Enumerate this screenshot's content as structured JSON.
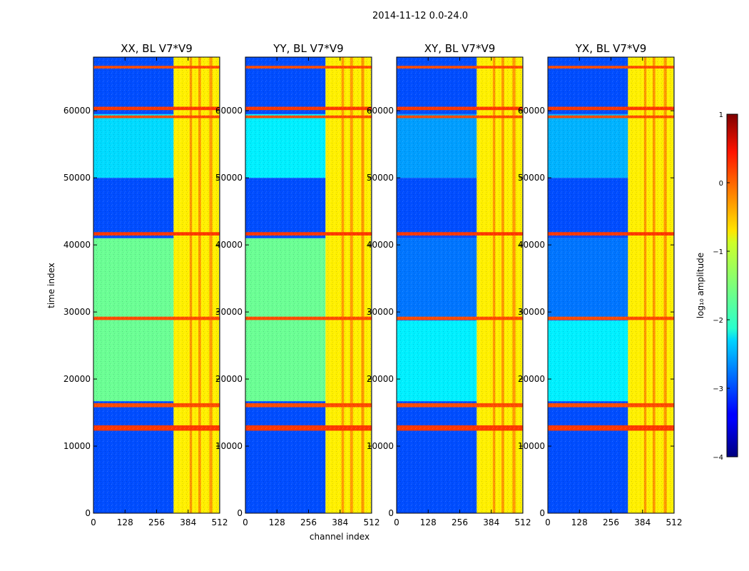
{
  "suptitle": "2014-11-12 0.0-24.0",
  "chart_data": {
    "type": "heatmap",
    "suptitle": "2014-11-12 0.0-24.0",
    "xlabel": "channel index",
    "ylabel": "time index",
    "xlim": [
      0,
      512
    ],
    "ylim": [
      0,
      68000
    ],
    "xticks": [
      "0",
      "128",
      "256",
      "384",
      "512"
    ],
    "yticks": [
      "0",
      "10000",
      "20000",
      "30000",
      "40000",
      "50000",
      "60000"
    ],
    "panels": [
      {
        "title": "XX, BL V7*V9",
        "regions": [
          {
            "y": [
              0,
              16700
            ],
            "low_value": -3.0
          },
          {
            "y": [
              16700,
              41000
            ],
            "low_value": -1.6
          },
          {
            "y": [
              41000,
              50000
            ],
            "low_value": -3.0
          },
          {
            "y": [
              50000,
              59500
            ],
            "low_value": -2.3
          },
          {
            "y": [
              59500,
              68000
            ],
            "low_value": -3.0
          }
        ]
      },
      {
        "title": "YY, BL V7*V9",
        "regions": [
          {
            "y": [
              0,
              16700
            ],
            "low_value": -3.0
          },
          {
            "y": [
              16700,
              41000
            ],
            "low_value": -1.6
          },
          {
            "y": [
              41000,
              50000
            ],
            "low_value": -3.0
          },
          {
            "y": [
              50000,
              59500
            ],
            "low_value": -2.2
          },
          {
            "y": [
              59500,
              68000
            ],
            "low_value": -3.0
          }
        ]
      },
      {
        "title": "XY, BL V7*V9",
        "regions": [
          {
            "y": [
              0,
              16700
            ],
            "low_value": -3.0
          },
          {
            "y": [
              16700,
              28700
            ],
            "low_value": -2.2
          },
          {
            "y": [
              28700,
              41000
            ],
            "low_value": -2.8
          },
          {
            "y": [
              41000,
              50000
            ],
            "low_value": -3.0
          },
          {
            "y": [
              50000,
              59500
            ],
            "low_value": -2.6
          },
          {
            "y": [
              59500,
              68000
            ],
            "low_value": -3.0
          }
        ]
      },
      {
        "title": "YX, BL V7*V9",
        "regions": [
          {
            "y": [
              0,
              16700
            ],
            "low_value": -3.0
          },
          {
            "y": [
              16700,
              28700
            ],
            "low_value": -2.2
          },
          {
            "y": [
              28700,
              41000
            ],
            "low_value": -2.8
          },
          {
            "y": [
              41000,
              50000
            ],
            "low_value": -3.0
          },
          {
            "y": [
              50000,
              59500
            ],
            "low_value": -2.5
          },
          {
            "y": [
              59500,
              68000
            ],
            "low_value": -3.0
          }
        ]
      }
    ],
    "bright_channels": {
      "range": [
        325,
        510
      ],
      "value": -0.8
    },
    "hot_channels": {
      "ranges": [
        [
          390,
          400
        ],
        [
          425,
          436
        ],
        [
          470,
          482
        ]
      ],
      "value": -0.3
    },
    "rfi_rows": [
      {
        "y": [
          12300,
          13100
        ],
        "value": 0.1
      },
      {
        "y": [
          15800,
          16400
        ],
        "value": 0.0
      },
      {
        "y": [
          28800,
          29300
        ],
        "value": 0.0
      },
      {
        "y": [
          41400,
          41900
        ],
        "value": 0.1
      },
      {
        "y": [
          58900,
          59300
        ],
        "value": 0.0
      },
      {
        "y": [
          60100,
          60600
        ],
        "value": 0.1
      },
      {
        "y": [
          66300,
          66700
        ],
        "value": 0.0
      }
    ],
    "colorbar": {
      "label": "log₁₀ amplitude",
      "range": [
        -4,
        1
      ],
      "ticks": [
        "1",
        "0",
        "−1",
        "−2",
        "−3",
        "−4"
      ]
    }
  }
}
